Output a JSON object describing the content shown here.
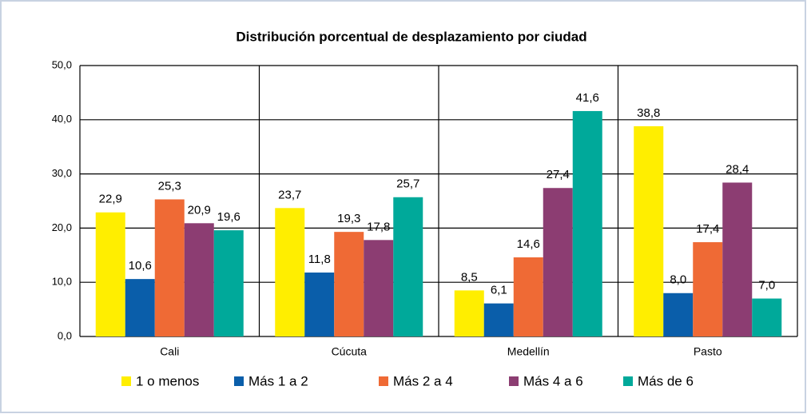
{
  "chart_data": {
    "type": "bar",
    "title": "Distribución porcentual de desplazamiento por ciudad",
    "categories": [
      "Cali",
      "Cúcuta",
      "Medellín",
      "Pasto"
    ],
    "series": [
      {
        "name": "1 o menos",
        "color": "#ffee00",
        "values": [
          22.9,
          23.7,
          8.5,
          38.8
        ],
        "value_labels": [
          "22,9",
          "23,7",
          "8,5",
          "38,8"
        ]
      },
      {
        "name": "Más 1 a 2",
        "color": "#0a5eaa",
        "values": [
          10.6,
          11.8,
          6.1,
          8.0
        ],
        "value_labels": [
          "10,6",
          "11,8",
          "6,1",
          "8,0"
        ]
      },
      {
        "name": "Más 2 a 4",
        "color": "#ef6a35",
        "values": [
          25.3,
          19.3,
          14.6,
          17.4
        ],
        "value_labels": [
          "25,3",
          "19,3",
          "14,6",
          "17,4"
        ]
      },
      {
        "name": "Más 4 a 6",
        "color": "#8c3d72",
        "values": [
          20.9,
          17.8,
          27.4,
          28.4
        ],
        "value_labels": [
          "20,9",
          "17,8",
          "27,4",
          "28,4"
        ]
      },
      {
        "name": "Más de 6",
        "color": "#00a99a",
        "values": [
          19.6,
          25.7,
          41.6,
          7.0
        ],
        "value_labels": [
          "19,6",
          "25,7",
          "41,6",
          "7,0"
        ]
      }
    ],
    "ylim": [
      0,
      50
    ],
    "yticks": [
      {
        "value": 0,
        "label": "0,0"
      },
      {
        "value": 10,
        "label": "10,0"
      },
      {
        "value": 20,
        "label": "20,0"
      },
      {
        "value": 30,
        "label": "30,0"
      },
      {
        "value": 40,
        "label": "40,0"
      },
      {
        "value": 50,
        "label": "50,0"
      }
    ],
    "grid": true
  }
}
